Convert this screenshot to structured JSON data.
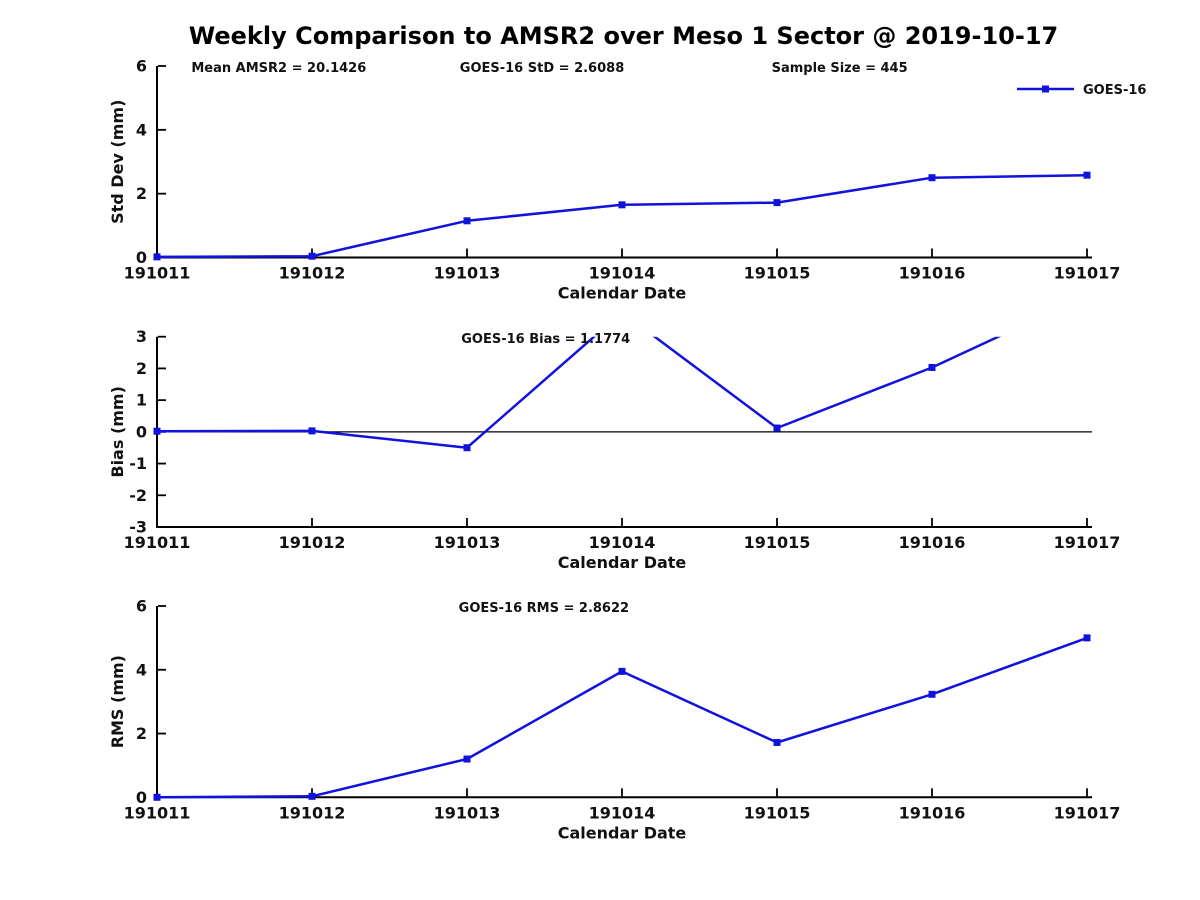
{
  "title": "Weekly Comparison to AMSR2 over Meso 1 Sector @ 2019-10-17",
  "legend": {
    "label": "GOES-16",
    "color": "#1212dd"
  },
  "axis_color": "#000000",
  "chart_data": [
    {
      "type": "line",
      "panel": "std-dev",
      "categories": [
        "191011",
        "191012",
        "191013",
        "191014",
        "191015",
        "191016",
        "191017"
      ],
      "series": [
        {
          "name": "GOES-16",
          "values": [
            0.02,
            0.04,
            1.15,
            1.65,
            1.72,
            2.5,
            2.58
          ]
        }
      ],
      "xlabel": "Calendar Date",
      "ylabel": "Std Dev (mm)",
      "ylim": [
        0,
        6
      ],
      "yticks": [
        0,
        2,
        4,
        6
      ],
      "annotations": [
        "Mean AMSR2 = 20.1426",
        "GOES-16 StD = 2.6088",
        "Sample Size = 445"
      ],
      "zero_line": false,
      "legend_position": "upper right",
      "grid": false
    },
    {
      "type": "line",
      "panel": "bias",
      "categories": [
        "191011",
        "191012",
        "191013",
        "191014",
        "191015",
        "191016",
        "191017"
      ],
      "series": [
        {
          "name": "GOES-16",
          "values": [
            0.02,
            0.03,
            -0.5,
            3.77,
            0.12,
            2.03,
            4.3
          ]
        }
      ],
      "xlabel": "Calendar Date",
      "ylabel": "Bias (mm)",
      "ylim": [
        -3,
        3
      ],
      "yticks": [
        -3,
        -2,
        -1,
        0,
        1,
        2,
        3
      ],
      "annotations": [
        "GOES-16 Bias  = 1.1774"
      ],
      "zero_line": true,
      "clipped_above_ymax": [
        "191014",
        "191017"
      ],
      "grid": false
    },
    {
      "type": "line",
      "panel": "rms",
      "categories": [
        "191011",
        "191012",
        "191013",
        "191014",
        "191015",
        "191016",
        "191017"
      ],
      "series": [
        {
          "name": "GOES-16",
          "values": [
            0.0,
            0.03,
            1.2,
            3.95,
            1.72,
            3.23,
            5.0
          ]
        }
      ],
      "xlabel": "Calendar Date",
      "ylabel": "RMS (mm)",
      "ylim": [
        0,
        6
      ],
      "yticks": [
        0,
        2,
        4,
        6
      ],
      "annotations": [
        "GOES-16 RMS = 2.8622"
      ],
      "zero_line": false,
      "grid": false
    }
  ]
}
